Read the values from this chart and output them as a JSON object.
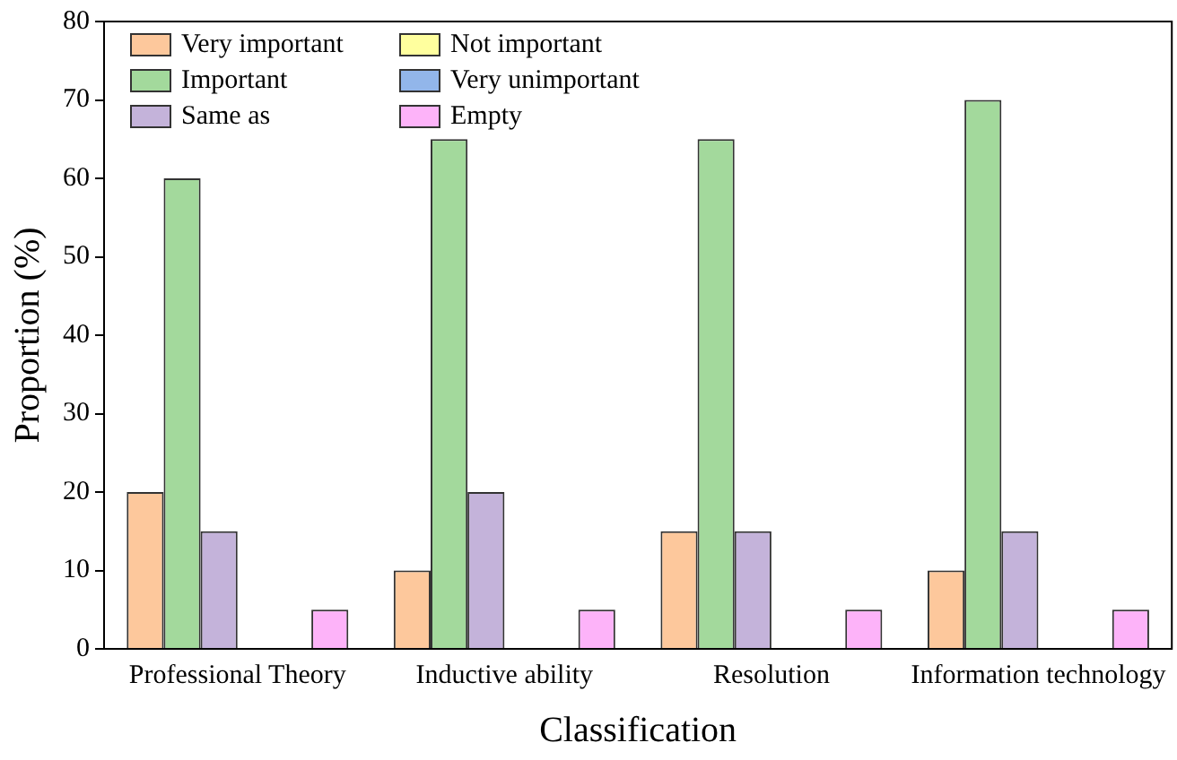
{
  "chart_data": {
    "type": "bar",
    "xlabel": "Classification",
    "ylabel": "Proportion (%)",
    "categories": [
      "Professional Theory",
      "Inductive ability",
      "Resolution",
      "Information technology"
    ],
    "series": [
      {
        "name": "Very important",
        "color": "#fdc89c",
        "values": [
          20,
          10,
          15,
          10
        ]
      },
      {
        "name": "Important",
        "color": "#a3d99c",
        "values": [
          60,
          65,
          65,
          70
        ]
      },
      {
        "name": "Same as",
        "color": "#c4b3da",
        "values": [
          15,
          20,
          15,
          15
        ]
      },
      {
        "name": "Not important",
        "color": "#ffff9e",
        "values": [
          0,
          0,
          0,
          0
        ]
      },
      {
        "name": "Very unimportant",
        "color": "#92b6ea",
        "values": [
          0,
          0,
          0,
          0
        ]
      },
      {
        "name": "Empty",
        "color": "#fdb3f9",
        "values": [
          5,
          5,
          5,
          5
        ]
      }
    ],
    "ylim": [
      0,
      80
    ],
    "yticks": [
      0,
      10,
      20,
      30,
      40,
      50,
      60,
      70,
      80
    ],
    "grid": false,
    "legend": "top left"
  }
}
